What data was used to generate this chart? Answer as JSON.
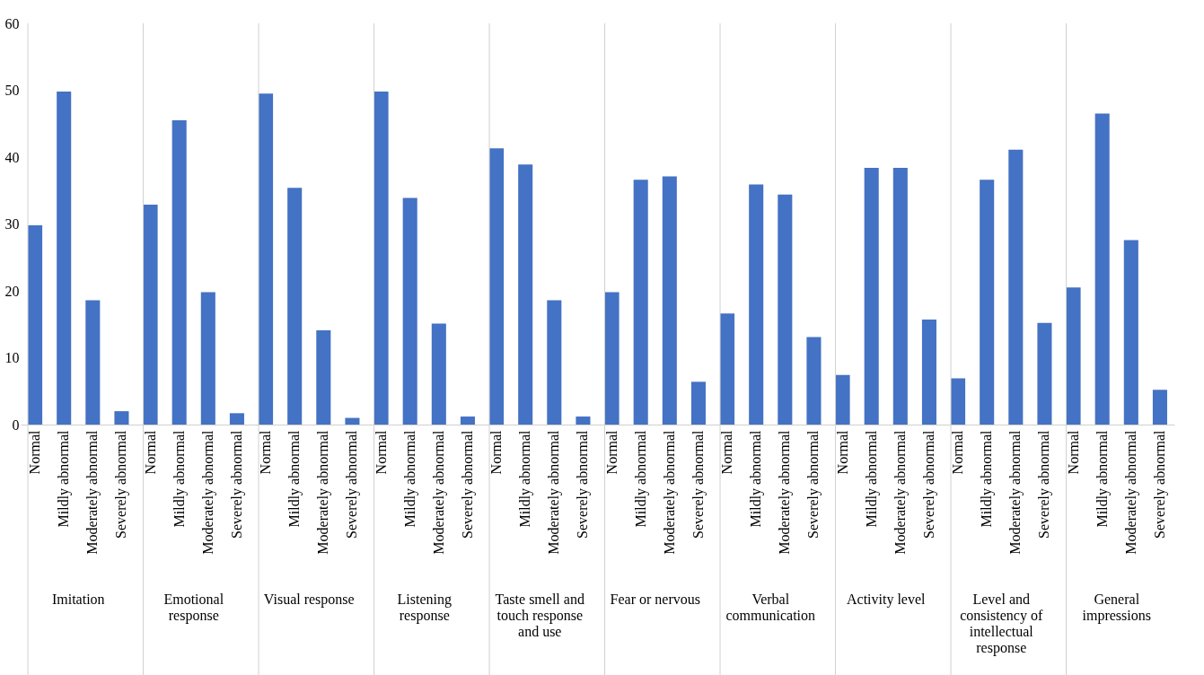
{
  "chart_data": {
    "type": "bar",
    "categories": [
      "Normal",
      "Mildly abnormal",
      "Moderately abnormal",
      "Severely abnormal",
      "Normal",
      "Mildly abnormal",
      "Moderately abnormal",
      "Severely abnormal",
      "Normal",
      "Mildly abnormal",
      "Moderately abnormal",
      "Severely abnormal",
      "Normal",
      "Mildly abnormal",
      "Moderately abnormal",
      "Severely abnormal",
      "Normal",
      "Mildly abnormal",
      "Moderately abnormal",
      "Severely abnormal",
      "Normal",
      "Mildly abnormal",
      "Moderately abnormal",
      "Severely abnormal",
      "Normal",
      "Mildly abnormal",
      "Moderately abnormal",
      "Severely abnormal",
      "Normal",
      "Mildly abnormal",
      "Moderately abnormal",
      "Severely abnormal",
      "Normal",
      "Mildly abnormal",
      "Moderately abnormal",
      "Severely abnormal",
      "Normal",
      "Mildly abnormal",
      "Moderately abnormal",
      "Severely abnormal"
    ],
    "values": [
      29.8,
      49.8,
      18.6,
      2.0,
      32.9,
      45.5,
      19.8,
      1.7,
      49.5,
      35.4,
      14.1,
      1.0,
      49.8,
      33.9,
      15.1,
      1.2,
      41.3,
      38.9,
      18.6,
      1.2,
      19.8,
      36.6,
      37.1,
      6.4,
      16.6,
      35.9,
      34.4,
      13.1,
      7.4,
      38.4,
      38.4,
      15.7,
      6.9,
      36.6,
      41.1,
      15.2,
      20.5,
      46.5,
      27.6,
      5.2
    ],
    "color": "#4472c4",
    "annotations": [
      "Imitation",
      "Emotional response",
      "Visual response",
      "Listening response",
      "Taste smell and touch response and use",
      "Fear or nervous",
      "Verbal communication",
      "Activity level",
      "Level and consistency of intellectual response",
      "General impressions"
    ],
    "ylim": [
      0,
      60
    ],
    "yticks": [
      0,
      10,
      20,
      30,
      40,
      50,
      60
    ],
    "grid": "x"
  }
}
